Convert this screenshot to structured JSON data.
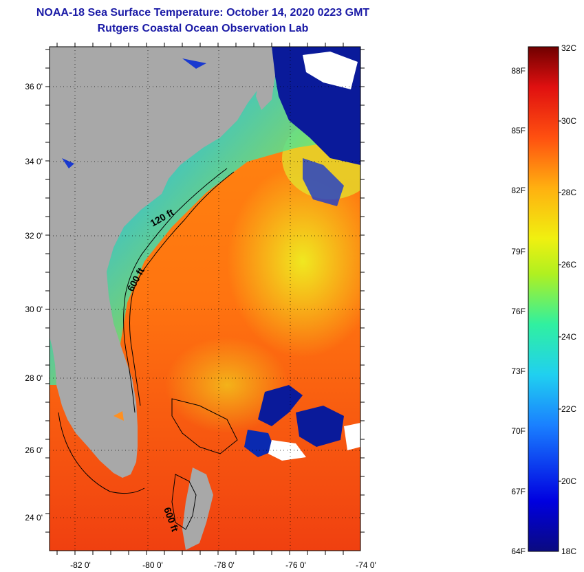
{
  "header": {
    "title": "NOAA-18 Sea Surface Temperature:  October 14, 2020 0223 GMT",
    "subtitle": "Rutgers Coastal Ocean Observation Lab"
  },
  "map": {
    "lon_labels": [
      "-82 0'",
      "-80 0'",
      "-78 0'",
      "-76 0'",
      "-74 0'"
    ],
    "lat_labels": [
      "36 0'",
      "34 0'",
      "32 0'",
      "30 0'",
      "28 0'",
      "26 0'",
      "24 0'"
    ],
    "contours": {
      "c120": "120 ft",
      "c600": "600 ft",
      "c600b": "600 ft"
    },
    "colors": {
      "land": "#a8a8a8",
      "cloud": "#ffffff",
      "cold": "#0a1a9a",
      "warm": "#ff6a10",
      "hot": "#f03a10"
    }
  },
  "colorbar": {
    "fahrenheit_labels": [
      "88F",
      "85F",
      "82F",
      "79F",
      "76F",
      "73F",
      "70F",
      "67F",
      "64F"
    ],
    "celsius_labels": [
      "32C",
      "30C",
      "28C",
      "26C",
      "24C",
      "22C",
      "20C",
      "18C"
    ],
    "range_c": [
      18,
      32
    ]
  }
}
